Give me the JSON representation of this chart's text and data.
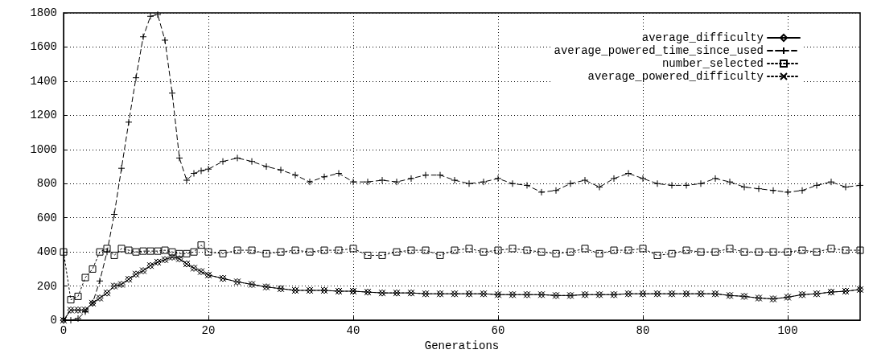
{
  "chart_data": {
    "type": "line",
    "xlabel": "Generations",
    "x": [
      0,
      1,
      2,
      3,
      4,
      5,
      6,
      7,
      8,
      9,
      10,
      11,
      12,
      13,
      14,
      15,
      16,
      17,
      18,
      19,
      20,
      22,
      24,
      26,
      28,
      30,
      32,
      34,
      36,
      38,
      40,
      42,
      44,
      46,
      48,
      50,
      52,
      54,
      56,
      58,
      60,
      62,
      64,
      66,
      68,
      70,
      72,
      74,
      76,
      78,
      80,
      82,
      84,
      86,
      88,
      90,
      92,
      94,
      96,
      98,
      100,
      102,
      104,
      106,
      108,
      110
    ],
    "series": [
      {
        "name": "average_difficulty",
        "color": "#000000",
        "marker": "diamond",
        "line_style": "solid",
        "values": [
          0,
          60,
          60,
          60,
          100,
          130,
          160,
          200,
          210,
          240,
          270,
          290,
          320,
          340,
          355,
          370,
          360,
          330,
          305,
          285,
          265,
          245,
          225,
          210,
          195,
          185,
          175,
          175,
          175,
          170,
          170,
          165,
          160,
          160,
          160,
          155,
          155,
          155,
          155,
          155,
          150,
          150,
          150,
          150,
          145,
          145,
          150,
          150,
          150,
          155,
          155,
          155,
          155,
          155,
          155,
          155,
          145,
          140,
          130,
          125,
          135,
          150,
          155,
          165,
          170,
          180
        ]
      },
      {
        "name": "average_powered_time_since_used",
        "color": "#000000",
        "marker": "plus",
        "line_style": "dashed",
        "values": [
          0,
          0,
          10,
          50,
          100,
          230,
          400,
          620,
          890,
          1160,
          1420,
          1660,
          1780,
          1790,
          1640,
          1330,
          950,
          820,
          860,
          875,
          885,
          930,
          950,
          930,
          900,
          880,
          850,
          810,
          840,
          860,
          810,
          810,
          820,
          810,
          830,
          850,
          850,
          820,
          800,
          810,
          830,
          800,
          790,
          750,
          760,
          800,
          820,
          780,
          830,
          860,
          830,
          800,
          790,
          790,
          800,
          830,
          810,
          780,
          770,
          760,
          750,
          760,
          790,
          810,
          780,
          790
        ]
      },
      {
        "name": "number_selected",
        "color": "#000000",
        "marker": "square",
        "line_style": "dotted",
        "values": [
          400,
          120,
          140,
          250,
          300,
          400,
          420,
          380,
          420,
          410,
          400,
          405,
          405,
          405,
          410,
          400,
          390,
          390,
          400,
          440,
          400,
          390,
          410,
          410,
          390,
          400,
          410,
          400,
          410,
          410,
          420,
          380,
          380,
          400,
          410,
          410,
          380,
          410,
          420,
          400,
          410,
          420,
          410,
          400,
          390,
          400,
          420,
          390,
          410,
          410,
          420,
          380,
          390,
          410,
          400,
          400,
          420,
          400,
          400,
          400,
          400,
          410,
          400,
          420,
          410,
          410
        ]
      },
      {
        "name": "average_powered_difficulty",
        "color": "#000000",
        "marker": "cross",
        "line_style": "dotted",
        "values": [
          0,
          60,
          60,
          60,
          100,
          130,
          160,
          200,
          210,
          240,
          270,
          290,
          320,
          340,
          355,
          370,
          360,
          330,
          305,
          285,
          265,
          245,
          225,
          210,
          195,
          185,
          175,
          175,
          175,
          170,
          170,
          165,
          160,
          160,
          160,
          155,
          155,
          155,
          155,
          155,
          150,
          150,
          150,
          150,
          145,
          145,
          150,
          150,
          150,
          155,
          155,
          155,
          155,
          155,
          155,
          155,
          145,
          140,
          130,
          125,
          135,
          150,
          155,
          165,
          170,
          180
        ]
      }
    ],
    "xlim": [
      0,
      110
    ],
    "xticks": [
      0,
      20,
      40,
      60,
      80,
      100
    ],
    "ylim": [
      0,
      1800
    ],
    "yticks": [
      0,
      200,
      400,
      600,
      800,
      1000,
      1200,
      1400,
      1600,
      1800
    ],
    "grid": true,
    "legend": "top right"
  }
}
